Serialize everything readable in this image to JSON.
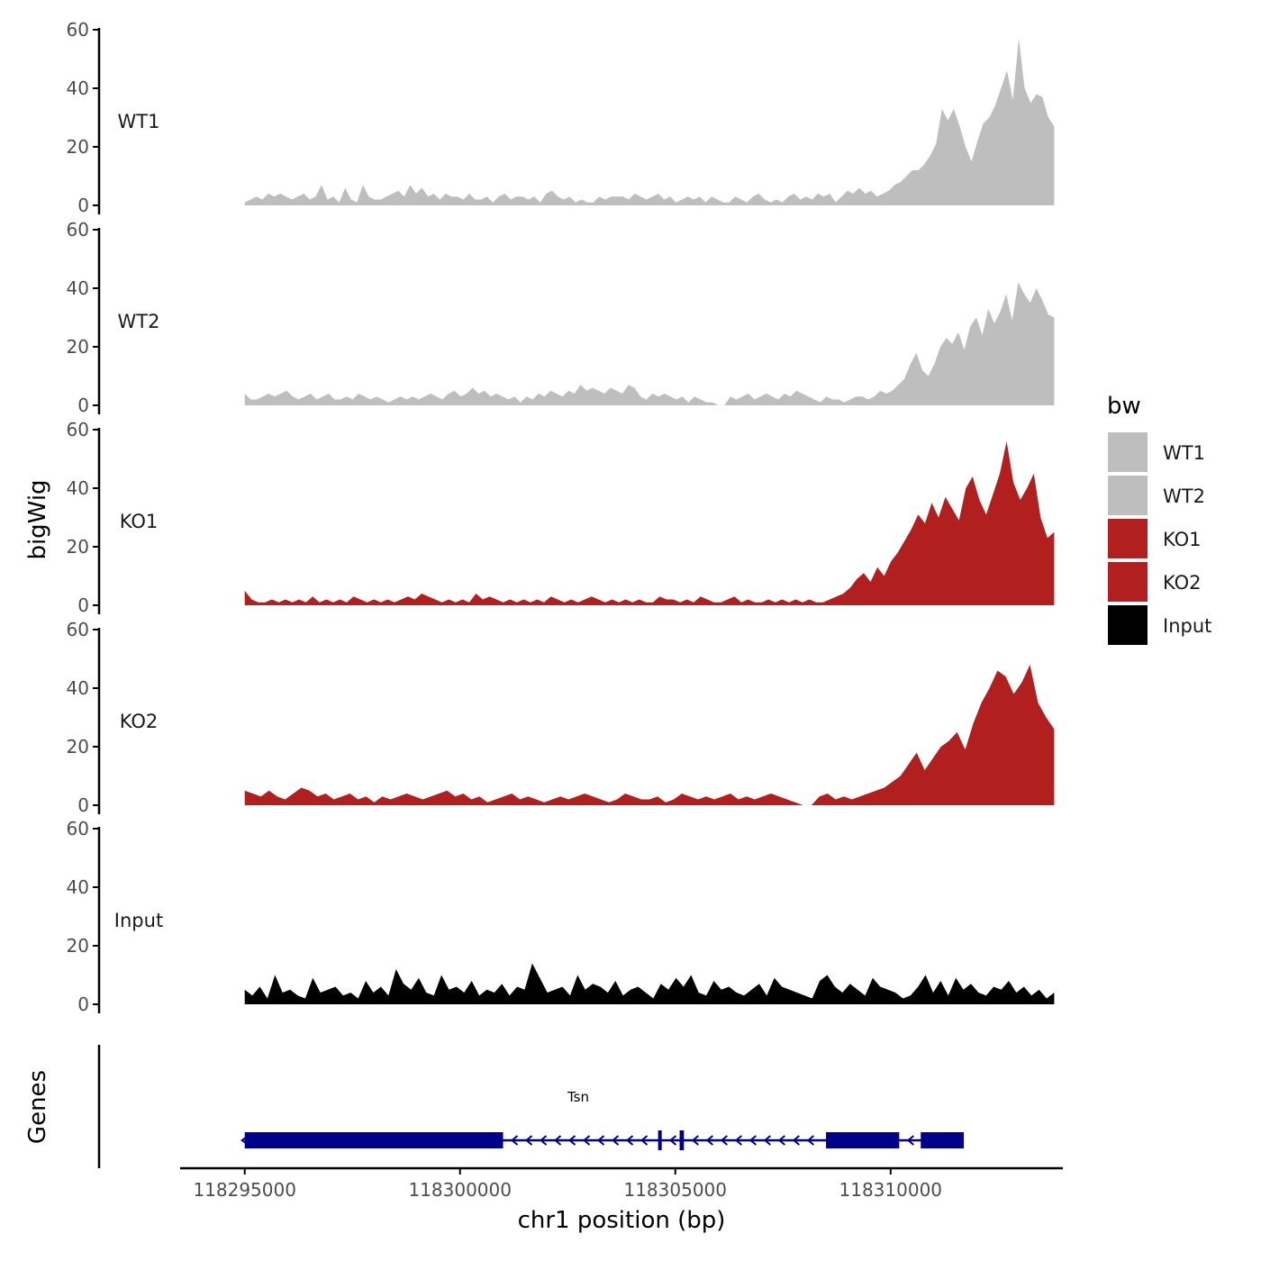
{
  "chart_data": {
    "type": "area",
    "ylabel": "bigWig",
    "xlabel": "chr1 position (bp)",
    "ylim": [
      0,
      60
    ],
    "yticks": [
      0,
      20,
      40,
      60
    ],
    "xlim": [
      118293500,
      118314000
    ],
    "xticks": [
      118295000,
      118300000,
      118305000,
      118310000
    ],
    "xtick_labels": [
      "118295000",
      "118300000",
      "118305000",
      "118310000"
    ],
    "data_range": [
      118295000,
      118313800
    ],
    "legend": {
      "title": "bw",
      "entries": [
        {
          "label": "WT1",
          "color": "#bebebe"
        },
        {
          "label": "WT2",
          "color": "#bebebe"
        },
        {
          "label": "KO1",
          "color": "#b21f1f"
        },
        {
          "label": "KO2",
          "color": "#b21f1f"
        },
        {
          "label": "Input",
          "color": "#000000"
        }
      ]
    },
    "series": [
      {
        "name": "WT1",
        "color": "#bebebe",
        "values": [
          1,
          2,
          3,
          2,
          4,
          3,
          4,
          3,
          2,
          3,
          4,
          2,
          3,
          7,
          2,
          3,
          1,
          6,
          2,
          1,
          7,
          3,
          2,
          2,
          3,
          4,
          5,
          3,
          7,
          4,
          6,
          3,
          4,
          2,
          4,
          3,
          3,
          2,
          4,
          2,
          2,
          3,
          1,
          3,
          4,
          2,
          3,
          3,
          2,
          3,
          1,
          4,
          5,
          3,
          2,
          3,
          1,
          2,
          1,
          1,
          3,
          2,
          3,
          3,
          3,
          2,
          4,
          3,
          2,
          3,
          4,
          2,
          3,
          1,
          2,
          3,
          2,
          3,
          1,
          3,
          2,
          1,
          1,
          3,
          2,
          1,
          3,
          4,
          2,
          1,
          2,
          1,
          3,
          4,
          2,
          3,
          2,
          4,
          3,
          4,
          1,
          3,
          5,
          4,
          6,
          4,
          5,
          3,
          4,
          5,
          7,
          8,
          10,
          12,
          12,
          14,
          17,
          21,
          33,
          29,
          33,
          27,
          20,
          15,
          22,
          28,
          30,
          34,
          40,
          46,
          36,
          57,
          40,
          35,
          38,
          37,
          30,
          27
        ]
      },
      {
        "name": "WT2",
        "color": "#bebebe",
        "values": [
          4,
          2,
          2,
          3,
          4,
          3,
          4,
          5,
          3,
          2,
          3,
          4,
          2,
          3,
          4,
          2,
          2,
          3,
          2,
          4,
          3,
          2,
          3,
          2,
          1,
          2,
          3,
          2,
          3,
          2,
          3,
          4,
          3,
          2,
          4,
          5,
          3,
          4,
          6,
          4,
          5,
          3,
          4,
          3,
          2,
          3,
          1,
          3,
          2,
          4,
          3,
          5,
          4,
          3,
          5,
          4,
          7,
          5,
          6,
          5,
          4,
          6,
          5,
          4,
          7,
          6,
          3,
          2,
          4,
          3,
          4,
          3,
          2,
          3,
          1,
          3,
          2,
          1,
          1,
          0,
          0,
          3,
          2,
          3,
          4,
          2,
          3,
          4,
          3,
          2,
          4,
          3,
          5,
          4,
          3,
          2,
          1,
          3,
          2,
          2,
          1,
          2,
          3,
          3,
          2,
          3,
          5,
          4,
          5,
          7,
          9,
          14,
          18,
          12,
          10,
          14,
          20,
          23,
          21,
          25,
          19,
          27,
          30,
          24,
          33,
          28,
          32,
          38,
          29,
          42,
          38,
          35,
          40,
          36,
          31,
          30
        ]
      },
      {
        "name": "KO1",
        "color": "#b21f1f",
        "values": [
          5,
          2,
          1,
          1,
          2,
          1,
          2,
          1,
          2,
          1,
          3,
          1,
          2,
          1,
          2,
          1,
          3,
          2,
          1,
          2,
          1,
          2,
          1,
          2,
          3,
          2,
          4,
          3,
          2,
          1,
          2,
          1,
          2,
          1,
          4,
          2,
          3,
          2,
          1,
          2,
          1,
          2,
          1,
          2,
          1,
          3,
          2,
          1,
          2,
          1,
          2,
          3,
          2,
          1,
          2,
          1,
          2,
          1,
          2,
          1,
          1,
          3,
          2,
          2,
          1,
          2,
          1,
          3,
          2,
          1,
          1,
          2,
          3,
          1,
          2,
          1,
          1,
          2,
          1,
          2,
          1,
          2,
          1,
          2,
          1,
          1,
          2,
          3,
          4,
          6,
          9,
          11,
          8,
          13,
          10,
          15,
          18,
          22,
          26,
          31,
          28,
          35,
          30,
          37,
          33,
          29,
          40,
          44,
          36,
          31,
          38,
          45,
          56,
          42,
          36,
          40,
          45,
          30,
          23,
          25
        ]
      },
      {
        "name": "KO2",
        "color": "#b21f1f",
        "values": [
          5,
          4,
          3,
          5,
          3,
          2,
          4,
          6,
          5,
          3,
          4,
          2,
          3,
          4,
          2,
          3,
          1,
          3,
          2,
          3,
          4,
          3,
          2,
          3,
          4,
          5,
          3,
          4,
          2,
          3,
          1,
          2,
          3,
          4,
          2,
          3,
          2,
          1,
          2,
          3,
          2,
          3,
          4,
          3,
          2,
          1,
          2,
          4,
          3,
          2,
          2,
          3,
          1,
          2,
          4,
          3,
          2,
          3,
          2,
          3,
          4,
          2,
          3,
          2,
          3,
          4,
          3,
          2,
          1,
          0,
          0,
          3,
          4,
          2,
          3,
          2,
          3,
          4,
          5,
          6,
          8,
          10,
          14,
          18,
          12,
          16,
          20,
          22,
          25,
          19,
          28,
          35,
          40,
          46,
          44,
          38,
          42,
          48,
          35,
          30,
          26
        ]
      },
      {
        "name": "Input",
        "color": "#000000",
        "values": [
          5,
          3,
          6,
          2,
          10,
          4,
          5,
          3,
          2,
          9,
          4,
          5,
          6,
          3,
          4,
          2,
          8,
          4,
          6,
          3,
          12,
          7,
          5,
          9,
          4,
          3,
          10,
          5,
          6,
          4,
          8,
          3,
          5,
          4,
          7,
          3,
          6,
          5,
          14,
          9,
          4,
          5,
          6,
          3,
          10,
          5,
          7,
          6,
          4,
          8,
          3,
          5,
          6,
          4,
          2,
          7,
          5,
          9,
          6,
          10,
          4,
          3,
          8,
          5,
          6,
          4,
          3,
          5,
          7,
          3,
          9,
          6,
          5,
          4,
          3,
          2,
          8,
          10,
          6,
          4,
          7,
          5,
          3,
          9,
          6,
          5,
          4,
          2,
          3,
          6,
          10,
          4,
          8,
          3,
          9,
          5,
          7,
          4,
          3,
          6,
          5,
          8,
          4,
          6,
          3,
          5,
          2,
          4
        ]
      }
    ],
    "genes": {
      "track_label": "Genes",
      "name": "Tsn",
      "strand": "-",
      "start": 118295000,
      "end": 118311700,
      "exons": [
        {
          "start": 118295000,
          "end": 118301000
        },
        {
          "start": 118304600,
          "end": 118304680
        },
        {
          "start": 118305100,
          "end": 118305200
        },
        {
          "start": 118308500,
          "end": 118310200
        },
        {
          "start": 118310700,
          "end": 118311700
        }
      ]
    }
  }
}
